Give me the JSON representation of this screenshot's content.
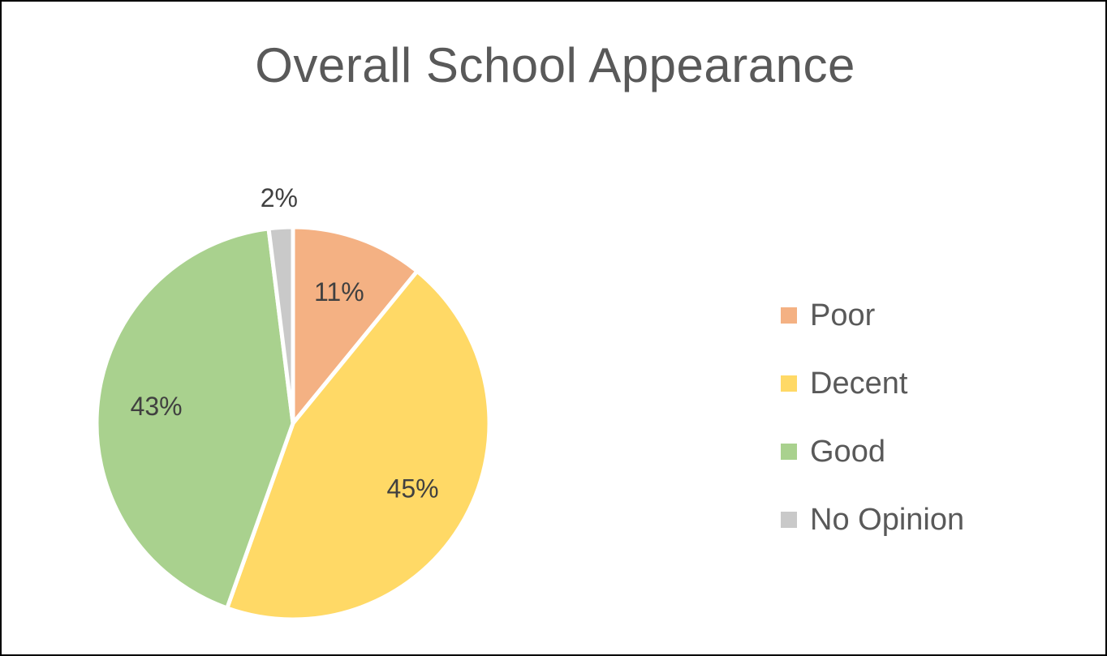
{
  "chart_data": {
    "type": "pie",
    "title": "Overall School Appearance",
    "categories": [
      "Poor",
      "Decent",
      "Good",
      "No Opinion"
    ],
    "values": [
      11,
      45,
      43,
      2
    ],
    "value_labels": [
      "11%",
      "45%",
      "43%",
      "2%"
    ],
    "colors": [
      "#F4B183",
      "#FFD966",
      "#A9D18E",
      "#C9C9C9"
    ],
    "start_angle_deg": 0,
    "direction": "clockwise",
    "legend_position": "right",
    "data_labels": "percent"
  }
}
